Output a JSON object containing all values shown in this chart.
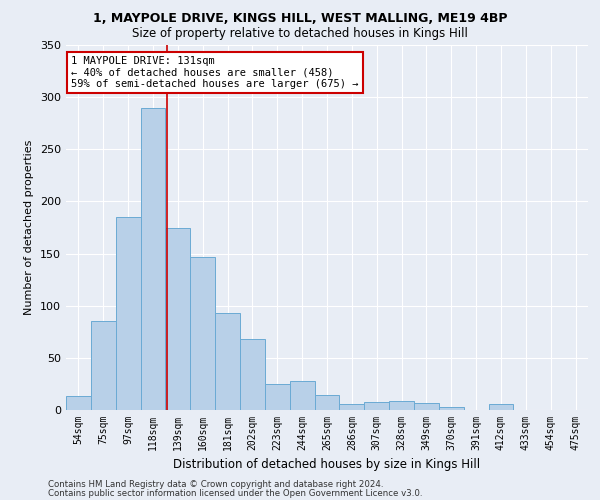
{
  "title1": "1, MAYPOLE DRIVE, KINGS HILL, WEST MALLING, ME19 4BP",
  "title2": "Size of property relative to detached houses in Kings Hill",
  "xlabel": "Distribution of detached houses by size in Kings Hill",
  "ylabel": "Number of detached properties",
  "categories": [
    "54sqm",
    "75sqm",
    "97sqm",
    "118sqm",
    "139sqm",
    "160sqm",
    "181sqm",
    "202sqm",
    "223sqm",
    "244sqm",
    "265sqm",
    "286sqm",
    "307sqm",
    "328sqm",
    "349sqm",
    "370sqm",
    "391sqm",
    "412sqm",
    "433sqm",
    "454sqm",
    "475sqm"
  ],
  "values": [
    13,
    85,
    185,
    290,
    175,
    147,
    93,
    68,
    25,
    28,
    14,
    6,
    8,
    9,
    7,
    3,
    0,
    6,
    0,
    0,
    0
  ],
  "bar_color": "#b8d0e8",
  "bar_edge_color": "#6aaad4",
  "background_color": "#e8edf5",
  "grid_color": "#ffffff",
  "annotation_line1": "1 MAYPOLE DRIVE: 131sqm",
  "annotation_line2": "← 40% of detached houses are smaller (458)",
  "annotation_line3": "59% of semi-detached houses are larger (675) →",
  "annotation_box_color": "#ffffff",
  "annotation_box_edge_color": "#cc0000",
  "red_line_x": 3.57,
  "ylim": [
    0,
    350
  ],
  "yticks": [
    0,
    50,
    100,
    150,
    200,
    250,
    300,
    350
  ],
  "footer1": "Contains HM Land Registry data © Crown copyright and database right 2024.",
  "footer2": "Contains public sector information licensed under the Open Government Licence v3.0."
}
